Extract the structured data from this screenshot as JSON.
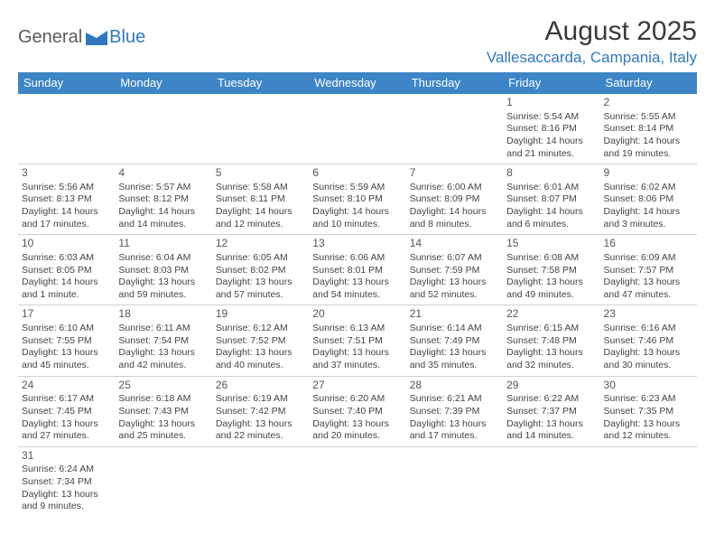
{
  "logo": {
    "part1": "General",
    "part2": "Blue"
  },
  "title": "August 2025",
  "location": "Vallesaccarda, Campania, Italy",
  "colors": {
    "header_bg": "#3d85c6",
    "header_text": "#ffffff",
    "accent": "#2f78bd",
    "row_border": "#3d85c6",
    "text": "#444444"
  },
  "day_headers": [
    "Sunday",
    "Monday",
    "Tuesday",
    "Wednesday",
    "Thursday",
    "Friday",
    "Saturday"
  ],
  "weeks": [
    [
      null,
      null,
      null,
      null,
      null,
      {
        "n": "1",
        "sr": "Sunrise: 5:54 AM",
        "ss": "Sunset: 8:16 PM",
        "dl1": "Daylight: 14 hours",
        "dl2": "and 21 minutes."
      },
      {
        "n": "2",
        "sr": "Sunrise: 5:55 AM",
        "ss": "Sunset: 8:14 PM",
        "dl1": "Daylight: 14 hours",
        "dl2": "and 19 minutes."
      }
    ],
    [
      {
        "n": "3",
        "sr": "Sunrise: 5:56 AM",
        "ss": "Sunset: 8:13 PM",
        "dl1": "Daylight: 14 hours",
        "dl2": "and 17 minutes."
      },
      {
        "n": "4",
        "sr": "Sunrise: 5:57 AM",
        "ss": "Sunset: 8:12 PM",
        "dl1": "Daylight: 14 hours",
        "dl2": "and 14 minutes."
      },
      {
        "n": "5",
        "sr": "Sunrise: 5:58 AM",
        "ss": "Sunset: 8:11 PM",
        "dl1": "Daylight: 14 hours",
        "dl2": "and 12 minutes."
      },
      {
        "n": "6",
        "sr": "Sunrise: 5:59 AM",
        "ss": "Sunset: 8:10 PM",
        "dl1": "Daylight: 14 hours",
        "dl2": "and 10 minutes."
      },
      {
        "n": "7",
        "sr": "Sunrise: 6:00 AM",
        "ss": "Sunset: 8:09 PM",
        "dl1": "Daylight: 14 hours",
        "dl2": "and 8 minutes."
      },
      {
        "n": "8",
        "sr": "Sunrise: 6:01 AM",
        "ss": "Sunset: 8:07 PM",
        "dl1": "Daylight: 14 hours",
        "dl2": "and 6 minutes."
      },
      {
        "n": "9",
        "sr": "Sunrise: 6:02 AM",
        "ss": "Sunset: 8:06 PM",
        "dl1": "Daylight: 14 hours",
        "dl2": "and 3 minutes."
      }
    ],
    [
      {
        "n": "10",
        "sr": "Sunrise: 6:03 AM",
        "ss": "Sunset: 8:05 PM",
        "dl1": "Daylight: 14 hours",
        "dl2": "and 1 minute."
      },
      {
        "n": "11",
        "sr": "Sunrise: 6:04 AM",
        "ss": "Sunset: 8:03 PM",
        "dl1": "Daylight: 13 hours",
        "dl2": "and 59 minutes."
      },
      {
        "n": "12",
        "sr": "Sunrise: 6:05 AM",
        "ss": "Sunset: 8:02 PM",
        "dl1": "Daylight: 13 hours",
        "dl2": "and 57 minutes."
      },
      {
        "n": "13",
        "sr": "Sunrise: 6:06 AM",
        "ss": "Sunset: 8:01 PM",
        "dl1": "Daylight: 13 hours",
        "dl2": "and 54 minutes."
      },
      {
        "n": "14",
        "sr": "Sunrise: 6:07 AM",
        "ss": "Sunset: 7:59 PM",
        "dl1": "Daylight: 13 hours",
        "dl2": "and 52 minutes."
      },
      {
        "n": "15",
        "sr": "Sunrise: 6:08 AM",
        "ss": "Sunset: 7:58 PM",
        "dl1": "Daylight: 13 hours",
        "dl2": "and 49 minutes."
      },
      {
        "n": "16",
        "sr": "Sunrise: 6:09 AM",
        "ss": "Sunset: 7:57 PM",
        "dl1": "Daylight: 13 hours",
        "dl2": "and 47 minutes."
      }
    ],
    [
      {
        "n": "17",
        "sr": "Sunrise: 6:10 AM",
        "ss": "Sunset: 7:55 PM",
        "dl1": "Daylight: 13 hours",
        "dl2": "and 45 minutes."
      },
      {
        "n": "18",
        "sr": "Sunrise: 6:11 AM",
        "ss": "Sunset: 7:54 PM",
        "dl1": "Daylight: 13 hours",
        "dl2": "and 42 minutes."
      },
      {
        "n": "19",
        "sr": "Sunrise: 6:12 AM",
        "ss": "Sunset: 7:52 PM",
        "dl1": "Daylight: 13 hours",
        "dl2": "and 40 minutes."
      },
      {
        "n": "20",
        "sr": "Sunrise: 6:13 AM",
        "ss": "Sunset: 7:51 PM",
        "dl1": "Daylight: 13 hours",
        "dl2": "and 37 minutes."
      },
      {
        "n": "21",
        "sr": "Sunrise: 6:14 AM",
        "ss": "Sunset: 7:49 PM",
        "dl1": "Daylight: 13 hours",
        "dl2": "and 35 minutes."
      },
      {
        "n": "22",
        "sr": "Sunrise: 6:15 AM",
        "ss": "Sunset: 7:48 PM",
        "dl1": "Daylight: 13 hours",
        "dl2": "and 32 minutes."
      },
      {
        "n": "23",
        "sr": "Sunrise: 6:16 AM",
        "ss": "Sunset: 7:46 PM",
        "dl1": "Daylight: 13 hours",
        "dl2": "and 30 minutes."
      }
    ],
    [
      {
        "n": "24",
        "sr": "Sunrise: 6:17 AM",
        "ss": "Sunset: 7:45 PM",
        "dl1": "Daylight: 13 hours",
        "dl2": "and 27 minutes."
      },
      {
        "n": "25",
        "sr": "Sunrise: 6:18 AM",
        "ss": "Sunset: 7:43 PM",
        "dl1": "Daylight: 13 hours",
        "dl2": "and 25 minutes."
      },
      {
        "n": "26",
        "sr": "Sunrise: 6:19 AM",
        "ss": "Sunset: 7:42 PM",
        "dl1": "Daylight: 13 hours",
        "dl2": "and 22 minutes."
      },
      {
        "n": "27",
        "sr": "Sunrise: 6:20 AM",
        "ss": "Sunset: 7:40 PM",
        "dl1": "Daylight: 13 hours",
        "dl2": "and 20 minutes."
      },
      {
        "n": "28",
        "sr": "Sunrise: 6:21 AM",
        "ss": "Sunset: 7:39 PM",
        "dl1": "Daylight: 13 hours",
        "dl2": "and 17 minutes."
      },
      {
        "n": "29",
        "sr": "Sunrise: 6:22 AM",
        "ss": "Sunset: 7:37 PM",
        "dl1": "Daylight: 13 hours",
        "dl2": "and 14 minutes."
      },
      {
        "n": "30",
        "sr": "Sunrise: 6:23 AM",
        "ss": "Sunset: 7:35 PM",
        "dl1": "Daylight: 13 hours",
        "dl2": "and 12 minutes."
      }
    ],
    [
      {
        "n": "31",
        "sr": "Sunrise: 6:24 AM",
        "ss": "Sunset: 7:34 PM",
        "dl1": "Daylight: 13 hours",
        "dl2": "and 9 minutes."
      },
      null,
      null,
      null,
      null,
      null,
      null
    ]
  ]
}
